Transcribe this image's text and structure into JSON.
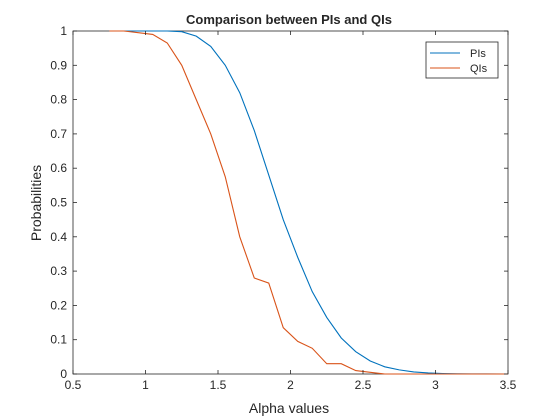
{
  "chart_data": {
    "type": "line",
    "title": "Comparison between PIs and QIs",
    "xlabel": "Alpha values",
    "ylabel": "Probabilities",
    "xlim": [
      0.5,
      3.5
    ],
    "ylim": [
      0,
      1
    ],
    "xticks": [
      "0.5",
      "1",
      "1.5",
      "2",
      "2.5",
      "3",
      "3.5"
    ],
    "yticks": [
      "0",
      "0.1",
      "0.2",
      "0.3",
      "0.4",
      "0.5",
      "0.6",
      "0.7",
      "0.8",
      "0.9",
      "1"
    ],
    "grid": false,
    "legend_position": "top-right",
    "series": [
      {
        "name": "PIs",
        "color": "#0072bd",
        "points": [
          [
            0.75,
            1.0
          ],
          [
            0.85,
            1.0
          ],
          [
            0.95,
            1.0
          ],
          [
            1.05,
            1.0
          ],
          [
            1.15,
            1.0
          ],
          [
            1.25,
            0.998
          ],
          [
            1.35,
            0.985
          ],
          [
            1.45,
            0.955
          ],
          [
            1.55,
            0.9
          ],
          [
            1.65,
            0.82
          ],
          [
            1.75,
            0.71
          ],
          [
            1.85,
            0.58
          ],
          [
            1.95,
            0.45
          ],
          [
            2.05,
            0.34
          ],
          [
            2.15,
            0.24
          ],
          [
            2.25,
            0.165
          ],
          [
            2.35,
            0.105
          ],
          [
            2.45,
            0.065
          ],
          [
            2.55,
            0.038
          ],
          [
            2.65,
            0.021
          ],
          [
            2.75,
            0.012
          ],
          [
            2.85,
            0.006
          ],
          [
            2.95,
            0.003
          ],
          [
            3.05,
            0.0015
          ],
          [
            3.15,
            0.0007
          ],
          [
            3.25,
            0.0003
          ],
          [
            3.35,
            0.0001
          ],
          [
            3.5,
            0.0
          ]
        ]
      },
      {
        "name": "QIs",
        "color": "#d95319",
        "points": [
          [
            0.75,
            1.0
          ],
          [
            0.85,
            1.0
          ],
          [
            0.95,
            0.995
          ],
          [
            1.05,
            0.99
          ],
          [
            1.15,
            0.965
          ],
          [
            1.25,
            0.9
          ],
          [
            1.35,
            0.8
          ],
          [
            1.45,
            0.7
          ],
          [
            1.55,
            0.575
          ],
          [
            1.65,
            0.4
          ],
          [
            1.75,
            0.28
          ],
          [
            1.85,
            0.265
          ],
          [
            1.95,
            0.135
          ],
          [
            2.05,
            0.095
          ],
          [
            2.15,
            0.075
          ],
          [
            2.25,
            0.03
          ],
          [
            2.35,
            0.03
          ],
          [
            2.45,
            0.01
          ],
          [
            2.55,
            0.005
          ],
          [
            2.65,
            0.0
          ],
          [
            2.75,
            0.0
          ],
          [
            2.85,
            0.0
          ],
          [
            2.95,
            0.0
          ],
          [
            3.05,
            0.0
          ],
          [
            3.15,
            0.0
          ],
          [
            3.25,
            0.0
          ],
          [
            3.35,
            0.0
          ],
          [
            3.5,
            0.0
          ]
        ]
      }
    ]
  }
}
